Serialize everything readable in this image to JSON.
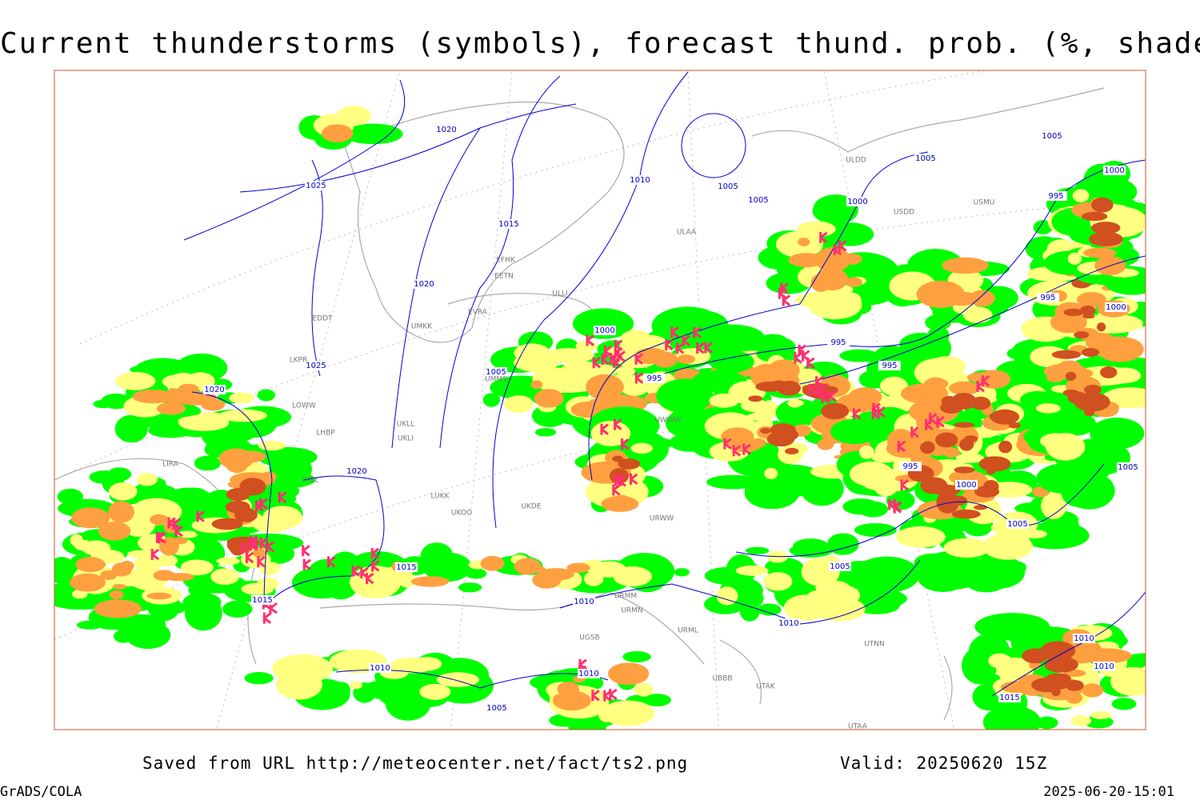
{
  "header": {
    "title": "Current thunderstorms (symbols), forecast thund. prob. (%, shaded)"
  },
  "map": {
    "isobar_labels": [
      "1020",
      "1025",
      "1015",
      "1010",
      "1005",
      "1005",
      "1005",
      "1005",
      "1000",
      "1000",
      "995",
      "1020",
      "1025",
      "1020",
      "1000",
      "1005",
      "995",
      "995",
      "995",
      "995",
      "1000",
      "995",
      "1000",
      "1005",
      "1005",
      "1020",
      "1015",
      "1015",
      "1005",
      "1010",
      "1010",
      "1010",
      "1010",
      "1005",
      "1010",
      "1010",
      "1015"
    ],
    "station_labels": [
      "ULDD",
      "USDD",
      "USMU",
      "ULAA",
      "EFHK",
      "EETN",
      "ULLI",
      "EVRA",
      "UMKK",
      "EDDT",
      "LKPR",
      "LOWW",
      "LHBP",
      "LIRA",
      "LYBE",
      "UKLL",
      "UKLI",
      "LUKK",
      "UKOO",
      "UKDE",
      "UMMS",
      "UWWW",
      "URWW",
      "UTAA",
      "UTNN",
      "UTAK",
      "UBBB",
      "URML",
      "URMM",
      "URMN",
      "UGSB"
    ]
  },
  "footer": {
    "saved": "Saved from URL http://meteocenter.net/fact/ts2.png",
    "valid": "Valid: 20250620 15Z",
    "software": "GrADS/COLA",
    "timestamp": "2025-06-20-15:01"
  }
}
